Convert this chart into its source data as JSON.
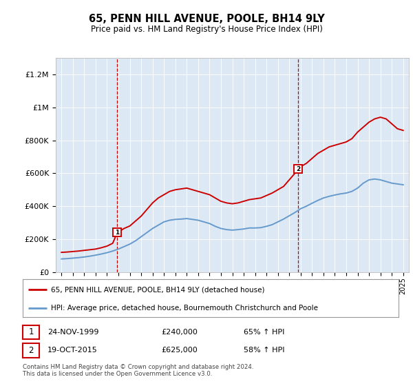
{
  "title": "65, PENN HILL AVENUE, POOLE, BH14 9LY",
  "subtitle": "Price paid vs. HM Land Registry's House Price Index (HPI)",
  "background_color": "#dce9f5",
  "plot_bg_color": "#dce9f5",
  "legend_line1": "65, PENN HILL AVENUE, POOLE, BH14 9LY (detached house)",
  "legend_line2": "HPI: Average price, detached house, Bournemouth Christchurch and Poole",
  "footnote": "Contains HM Land Registry data © Crown copyright and database right 2024.\nThis data is licensed under the Open Government Licence v3.0.",
  "table": [
    {
      "num": "1",
      "date": "24-NOV-1999",
      "price": "£240,000",
      "pct": "65% ↑ HPI"
    },
    {
      "num": "2",
      "date": "19-OCT-2015",
      "price": "£625,000",
      "pct": "58% ↑ HPI"
    }
  ],
  "marker1_x": 1999.9,
  "marker1_y": 240000,
  "marker2_x": 2015.8,
  "marker2_y": 625000,
  "vline1_x": 1999.9,
  "vline2_x": 2015.8,
  "ylim": [
    0,
    1300000
  ],
  "xlim": [
    1994.5,
    2025.5
  ],
  "yticks": [
    0,
    200000,
    400000,
    600000,
    800000,
    1000000,
    1200000
  ],
  "ytick_labels": [
    "£0",
    "£200K",
    "£400K",
    "£600K",
    "£800K",
    "£1M",
    "£1.2M"
  ],
  "xticks": [
    1995,
    1996,
    1997,
    1998,
    1999,
    2000,
    2001,
    2002,
    2003,
    2004,
    2005,
    2006,
    2007,
    2008,
    2009,
    2010,
    2011,
    2012,
    2013,
    2014,
    2015,
    2016,
    2017,
    2018,
    2019,
    2020,
    2021,
    2022,
    2023,
    2024,
    2025
  ],
  "red_line_color": "#cc0000",
  "blue_line_color": "#6699cc",
  "red_x": [
    1995.0,
    1995.5,
    1996.0,
    1996.5,
    1997.0,
    1997.5,
    1998.0,
    1998.5,
    1999.0,
    1999.5,
    1999.9,
    2000.5,
    2001.0,
    2001.5,
    2002.0,
    2002.5,
    2003.0,
    2003.5,
    2004.0,
    2004.5,
    2005.0,
    2005.5,
    2006.0,
    2006.5,
    2007.0,
    2007.5,
    2008.0,
    2008.5,
    2009.0,
    2009.5,
    2010.0,
    2010.5,
    2011.0,
    2011.5,
    2012.0,
    2012.5,
    2013.0,
    2013.5,
    2014.0,
    2014.5,
    2015.0,
    2015.5,
    2015.8,
    2016.0,
    2016.5,
    2017.0,
    2017.5,
    2018.0,
    2018.5,
    2019.0,
    2019.5,
    2020.0,
    2020.5,
    2021.0,
    2021.5,
    2022.0,
    2022.5,
    2023.0,
    2023.5,
    2024.0,
    2024.5,
    2025.0
  ],
  "red_y": [
    120000,
    122000,
    125000,
    128000,
    132000,
    136000,
    140000,
    148000,
    158000,
    175000,
    240000,
    265000,
    280000,
    310000,
    340000,
    380000,
    420000,
    450000,
    470000,
    490000,
    500000,
    505000,
    510000,
    500000,
    490000,
    480000,
    470000,
    450000,
    430000,
    420000,
    415000,
    420000,
    430000,
    440000,
    445000,
    450000,
    465000,
    480000,
    500000,
    520000,
    560000,
    600000,
    625000,
    640000,
    660000,
    690000,
    720000,
    740000,
    760000,
    770000,
    780000,
    790000,
    810000,
    850000,
    880000,
    910000,
    930000,
    940000,
    930000,
    900000,
    870000,
    860000
  ],
  "blue_x": [
    1995.0,
    1995.5,
    1996.0,
    1996.5,
    1997.0,
    1997.5,
    1998.0,
    1998.5,
    1999.0,
    1999.5,
    2000.0,
    2000.5,
    2001.0,
    2001.5,
    2002.0,
    2002.5,
    2003.0,
    2003.5,
    2004.0,
    2004.5,
    2005.0,
    2005.5,
    2006.0,
    2006.5,
    2007.0,
    2007.5,
    2008.0,
    2008.5,
    2009.0,
    2009.5,
    2010.0,
    2010.5,
    2011.0,
    2011.5,
    2012.0,
    2012.5,
    2013.0,
    2013.5,
    2014.0,
    2014.5,
    2015.0,
    2015.5,
    2016.0,
    2016.5,
    2017.0,
    2017.5,
    2018.0,
    2018.5,
    2019.0,
    2019.5,
    2020.0,
    2020.5,
    2021.0,
    2021.5,
    2022.0,
    2022.5,
    2023.0,
    2023.5,
    2024.0,
    2024.5,
    2025.0
  ],
  "blue_y": [
    80000,
    82000,
    85000,
    88000,
    92000,
    97000,
    103000,
    110000,
    118000,
    128000,
    140000,
    155000,
    170000,
    190000,
    215000,
    240000,
    265000,
    285000,
    305000,
    315000,
    320000,
    322000,
    325000,
    320000,
    315000,
    305000,
    295000,
    278000,
    265000,
    258000,
    255000,
    258000,
    262000,
    268000,
    268000,
    270000,
    278000,
    288000,
    305000,
    322000,
    342000,
    362000,
    385000,
    400000,
    418000,
    435000,
    450000,
    460000,
    468000,
    475000,
    480000,
    490000,
    510000,
    540000,
    560000,
    565000,
    560000,
    550000,
    540000,
    535000,
    530000
  ]
}
